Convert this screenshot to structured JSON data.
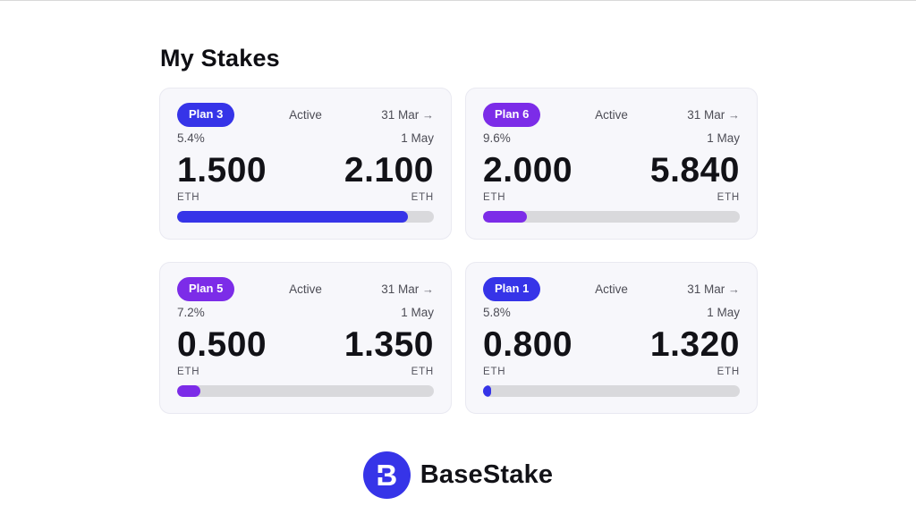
{
  "page": {
    "title": "My Stakes"
  },
  "icons": {
    "arrow_right": "→",
    "logo_letter": "B"
  },
  "colors": {
    "blue": "#3634e8",
    "purple": "#7c2ce8",
    "track": "#d9d9dc",
    "card_bg": "#f7f7fb",
    "card_border": "#e9e9f1"
  },
  "footer": {
    "brand": "BaseStake"
  },
  "cards": [
    {
      "plan": "Plan 3",
      "accent": "blue",
      "status": "Active",
      "start_date": "31 Mar",
      "end_date": "1 May",
      "apr": "5.4%",
      "staked": "1.500",
      "staked_unit": "ETH",
      "reward": "2.100",
      "reward_unit": "ETH",
      "progress_pct": 90
    },
    {
      "plan": "Plan 6",
      "accent": "purple",
      "status": "Active",
      "start_date": "31 Mar",
      "end_date": "1 May",
      "apr": "9.6%",
      "staked": "2.000",
      "staked_unit": "ETH",
      "reward": "5.840",
      "reward_unit": "ETH",
      "progress_pct": 17
    },
    {
      "plan": "Plan 5",
      "accent": "purple",
      "status": "Active",
      "start_date": "31 Mar",
      "end_date": "1 May",
      "apr": "7.2%",
      "staked": "0.500",
      "staked_unit": "ETH",
      "reward": "1.350",
      "reward_unit": "ETH",
      "progress_pct": 9
    },
    {
      "plan": "Plan 1",
      "accent": "blue",
      "status": "Active",
      "start_date": "31 Mar",
      "end_date": "1 May",
      "apr": "5.8%",
      "staked": "0.800",
      "staked_unit": "ETH",
      "reward": "1.320",
      "reward_unit": "ETH",
      "progress_pct": 3
    }
  ]
}
